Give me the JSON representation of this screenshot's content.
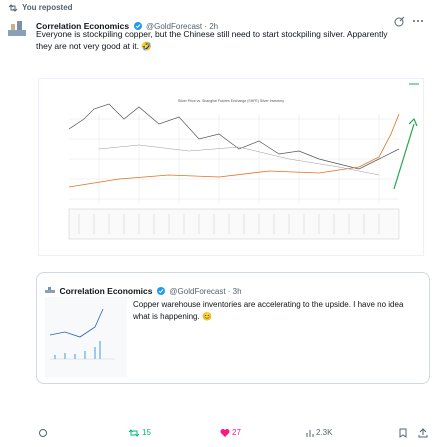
{
  "repost": {
    "label": "You reposted"
  },
  "tweet": {
    "author": "Correlation Economics",
    "meta": "@GoldForecast · 2h",
    "text": "Everyone is stockpiling copper, but the Chinese still need to start stockpiling silver. Apparently they are not very good at it. 🤣",
    "image_title": "Silver Price vs. Shanghai Futures Exchange (SHFE) Silver Inventory"
  },
  "quoted": {
    "author": "Correlation Economics",
    "meta": "@GoldForecast · 3h",
    "text": "Copper warehouse inventories are accelerating to the upside. I have no idea what is happening. 😊"
  },
  "actions": {
    "reposts": "15",
    "likes": "27",
    "views": "2.3K"
  }
}
